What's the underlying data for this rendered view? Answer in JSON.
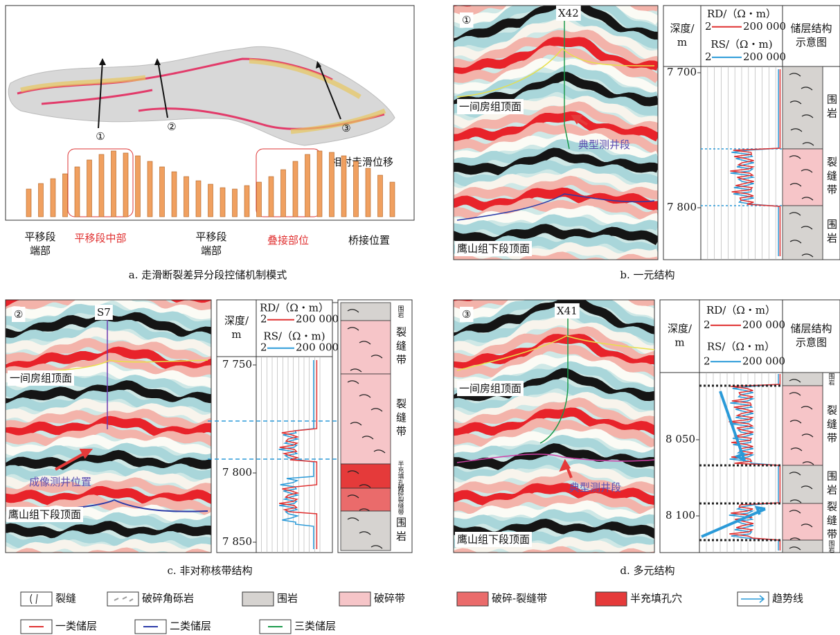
{
  "panel_a": {
    "markers": [
      "①",
      "②",
      "③"
    ],
    "displacement_label": "相对走滑位移",
    "bars": [
      40,
      48,
      55,
      62,
      72,
      82,
      90,
      95,
      92,
      88,
      80,
      72,
      65,
      58,
      52,
      47,
      42,
      40,
      45,
      50,
      58,
      68,
      80,
      90,
      95,
      93,
      88,
      80,
      70,
      60,
      50
    ],
    "segments": [
      [
        "平移段",
        "端部"
      ],
      [
        "平移段中部"
      ],
      [
        "平移段",
        "端部"
      ],
      [
        "叠接部位"
      ],
      [
        "桥接位置"
      ]
    ],
    "caption": "a. 走滑断裂差异分段控储机制模式"
  },
  "panel_b": {
    "marker": "①",
    "well": "X42",
    "top1": "一间房组顶面",
    "section": "典型测井段",
    "top2": "鹰山组下段顶面",
    "header": {
      "depth": [
        "深度/",
        "m"
      ],
      "rd": "RD/（Ω・m）",
      "rd_min": "2",
      "rd_max": "200 000",
      "rs": "RS/（Ω・m)",
      "rs_min": "2",
      "rs_max": "200 000",
      "structure": [
        "储层结构",
        "示意图"
      ]
    },
    "depths": [
      "7 700",
      "7 800"
    ],
    "layers": [
      "围岩",
      "裂缝带",
      "围岩"
    ],
    "caption": "b. 一元结构"
  },
  "panel_c": {
    "marker": "②",
    "well": "S7",
    "top1": "一间房组顶面",
    "section": "成像测井位置",
    "top2": "鹰山组下段顶面",
    "header": {
      "depth": [
        "深度/",
        "m"
      ],
      "rd": "RD/（Ω・m）",
      "rd_min": "2",
      "rd_max": "200 000",
      "rs": "RS/（Ω・m)",
      "rs_min": "2",
      "rs_max": "200 000"
    },
    "depths": [
      "7 750",
      "7 800",
      "7 850"
    ],
    "layers": [
      "围岩",
      "裂缝带",
      "裂缝带",
      "半充填孔穴",
      "破碎裂缝带",
      "围岩"
    ],
    "caption": "c. 非对称核带结构"
  },
  "panel_d": {
    "marker": "③",
    "well": "X41",
    "top1": "一间房组顶面",
    "section": "典型测井段",
    "top2": "鹰山组下段顶面",
    "header": {
      "depth": [
        "深度/",
        "m"
      ],
      "rd": "RD/（Ω・m）",
      "rd_min": "2",
      "rd_max": "200 000",
      "rs": "RS/（Ω・m）",
      "rs_min": "2",
      "rs_max": "200 000",
      "structure": [
        "储层结构",
        "示意图"
      ]
    },
    "depths": [
      "8 050",
      "8 100"
    ],
    "layers": [
      "围岩",
      "裂缝带",
      "围岩",
      "裂缝带",
      "围岩"
    ],
    "caption": "d. 多元结构"
  },
  "legend": [
    "裂缝",
    "破碎角砾岩",
    "围岩",
    "破碎带",
    "破碎-裂缝带",
    "半充填孔穴",
    "趋势线",
    "一类储层",
    "二类储层",
    "三类储层"
  ]
}
